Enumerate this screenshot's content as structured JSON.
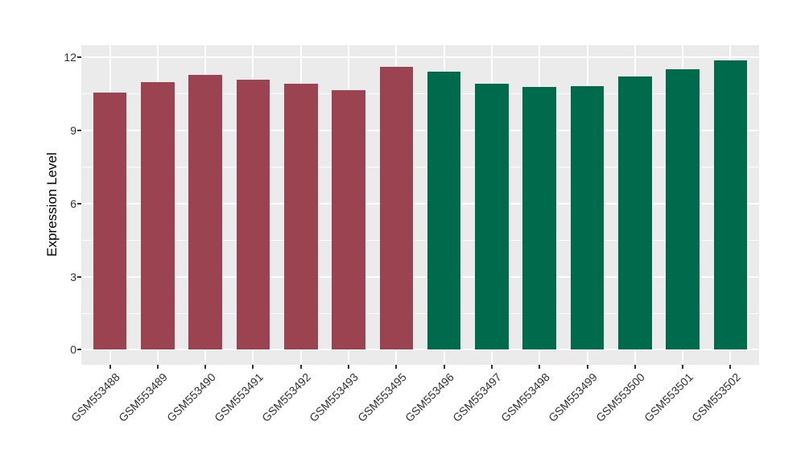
{
  "chart_data": {
    "type": "bar",
    "title": "",
    "xlabel": "",
    "ylabel": "Expression Level",
    "categories": [
      "GSM553488",
      "GSM553489",
      "GSM553490",
      "GSM553491",
      "GSM553492",
      "GSM553493",
      "GSM553495",
      "GSM553496",
      "GSM553497",
      "GSM553498",
      "GSM553499",
      "GSM553500",
      "GSM553501",
      "GSM553502"
    ],
    "values": [
      10.55,
      10.95,
      11.25,
      11.05,
      10.9,
      10.65,
      11.6,
      11.4,
      10.9,
      10.75,
      10.8,
      11.2,
      11.5,
      11.85
    ],
    "bar_groups": [
      0,
      0,
      0,
      0,
      0,
      0,
      0,
      1,
      1,
      1,
      1,
      1,
      1,
      1
    ],
    "group_colors": [
      "#9B4351",
      "#006B4C"
    ],
    "yticks": [
      0,
      3,
      6,
      9,
      12
    ],
    "ytick_labels": [
      "0",
      "3",
      "6",
      "9",
      "12"
    ],
    "yticks_minor": [
      1.5,
      4.5,
      7.5,
      10.5
    ],
    "ylim": [
      -0.61,
      12.48
    ],
    "bar_rel_width": 0.7,
    "grid": "on",
    "legend_position": "none",
    "panel_bg": "#EBEBEB",
    "grid_color": "#FFFFFF",
    "background": "#FFFFFF"
  }
}
